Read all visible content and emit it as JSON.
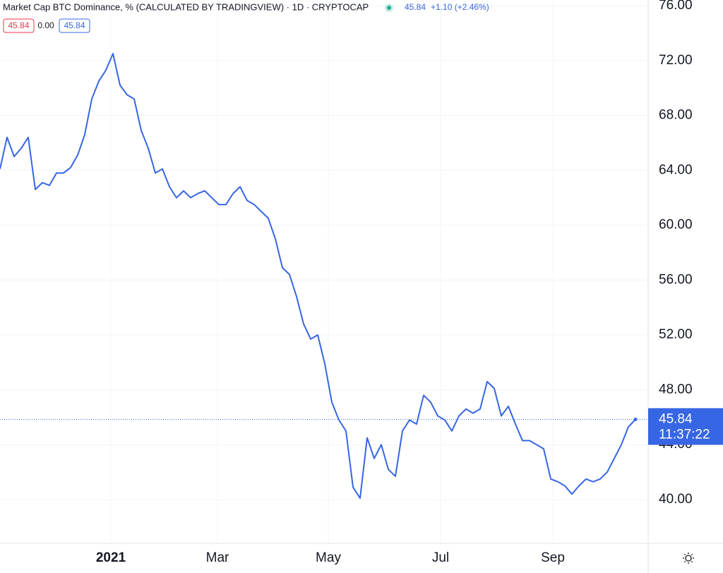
{
  "chart_data": {
    "type": "line",
    "title": "Market Cap BTC Dominance, % (CALCULATED BY TRADINGVIEW) · 1D · CRYPTOCAP",
    "change": "+1.10 (+2.46%)",
    "badges": [
      "45.84",
      "0.00",
      "45.84"
    ],
    "countdown": "11:37:22",
    "color": "#3766e4",
    "grid": true,
    "values": [
      64.1,
      66.4,
      65.0,
      65.6,
      66.4,
      62.6,
      63.1,
      62.9,
      63.8,
      63.8,
      64.2,
      65.1,
      66.6,
      69.2,
      70.5,
      71.3,
      72.5,
      70.2,
      69.5,
      69.2,
      66.9,
      65.6,
      63.8,
      64.1,
      62.8,
      62.0,
      62.5,
      62.0,
      62.3,
      62.5,
      62.0,
      61.5,
      61.5,
      62.3,
      62.8,
      61.8,
      61.5,
      61.0,
      60.5,
      59.0,
      56.9,
      56.4,
      54.8,
      52.8,
      51.7,
      52.0,
      49.9,
      47.1,
      45.8,
      45.0,
      40.9,
      40.1,
      44.5,
      43.0,
      44.0,
      42.2,
      41.7,
      45.0,
      45.8,
      45.5,
      47.6,
      47.1,
      46.1,
      45.8,
      45.0,
      46.1,
      46.6,
      46.3,
      46.6,
      48.6,
      48.1,
      46.1,
      46.8,
      45.5,
      44.3,
      44.3,
      44.0,
      43.7,
      41.5,
      41.3,
      41.0,
      40.4,
      41.0,
      41.5,
      41.3,
      41.5,
      42.0,
      43.0,
      44.0,
      45.3,
      45.84
    ],
    "xlim": [
      0,
      91.8
    ],
    "xticks": [
      {
        "value": 15.7,
        "label": "2021"
      },
      {
        "value": 30.8,
        "label": "Mar"
      },
      {
        "value": 46.5,
        "label": "May"
      },
      {
        "value": 62.4,
        "label": "Jul"
      },
      {
        "value": 78.3,
        "label": "Sep"
      }
    ],
    "ylim": [
      36.81,
      76.41
    ],
    "yticks": [
      {
        "value": 40,
        "label": "40.00"
      },
      {
        "value": 44,
        "label": "44.00"
      },
      {
        "value": 48,
        "label": "48.00"
      },
      {
        "value": 52,
        "label": "52.00"
      },
      {
        "value": 56,
        "label": "56.00"
      },
      {
        "value": 60,
        "label": "60.00"
      },
      {
        "value": 64,
        "label": "64.00"
      },
      {
        "value": 68,
        "label": "68.00"
      },
      {
        "value": 72,
        "label": "72.00"
      },
      {
        "value": 76,
        "label": "76.00"
      }
    ]
  }
}
